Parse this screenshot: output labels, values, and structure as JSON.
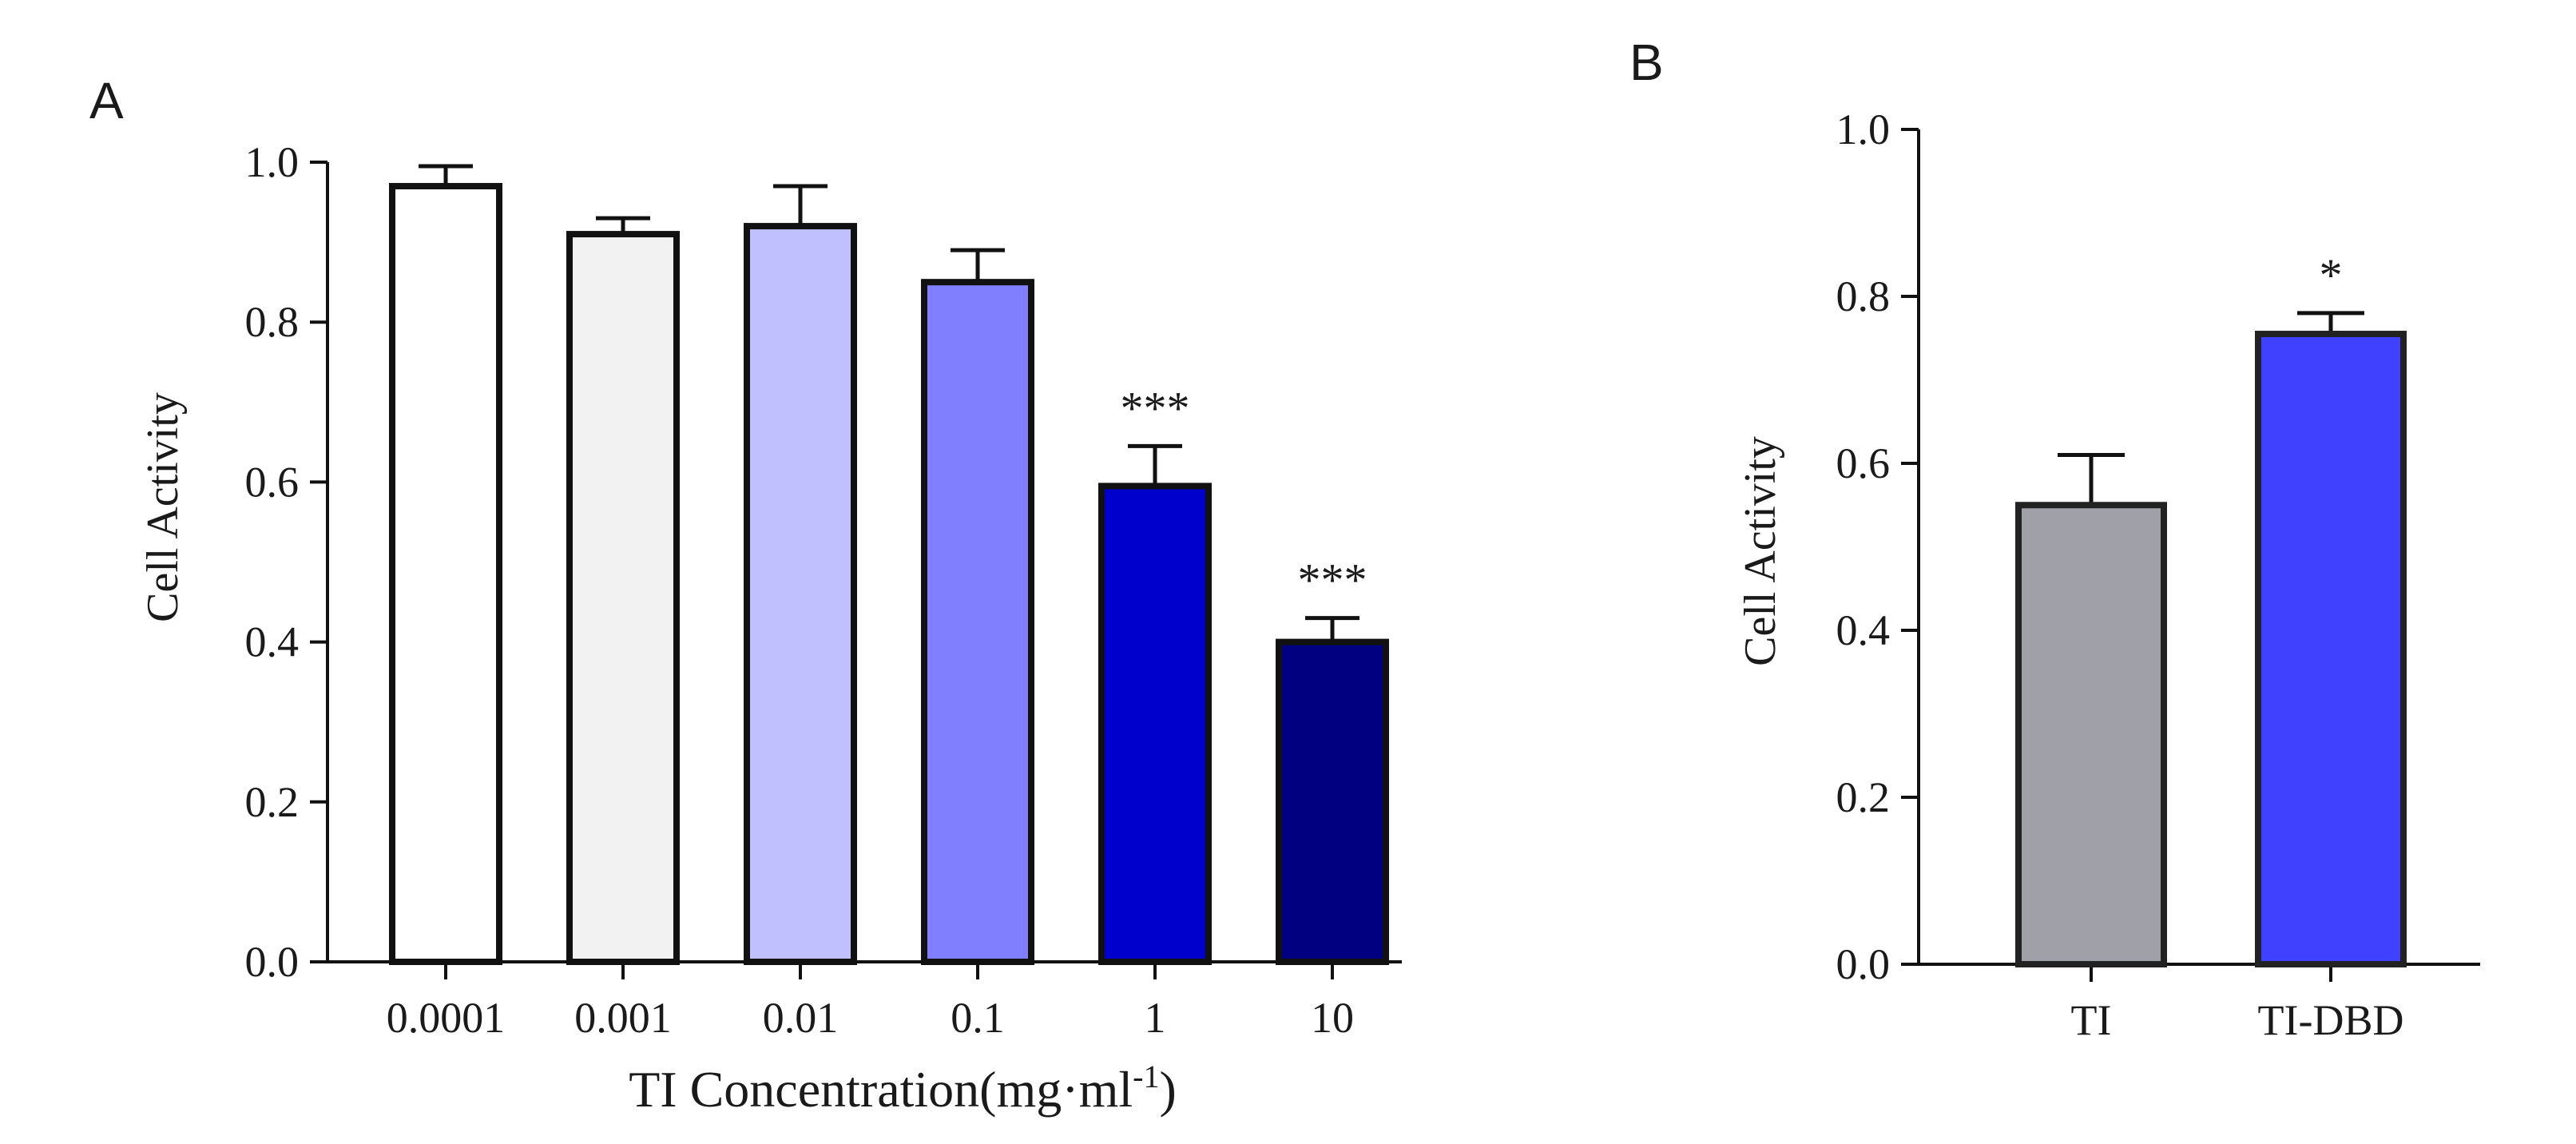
{
  "chart_data": [
    {
      "panel": "A",
      "type": "bar",
      "title": "",
      "xlabel": "TI Concentration(mg·ml",
      "xlabel_superscript": "-1",
      "xlabel_suffix": ")",
      "ylabel": "Cell Activity",
      "ylim": [
        0,
        1.0
      ],
      "yticks": [
        0.0,
        0.2,
        0.4,
        0.6,
        0.8,
        1.0
      ],
      "ytick_labels": [
        "0.0",
        "0.2",
        "0.4",
        "0.6",
        "0.8",
        "1.0"
      ],
      "grid": false,
      "categories": [
        "0.0001",
        "0.001",
        "0.01",
        "0.1",
        "1",
        "10"
      ],
      "values": [
        0.97,
        0.91,
        0.92,
        0.85,
        0.595,
        0.4
      ],
      "errors": [
        0.025,
        0.02,
        0.05,
        0.04,
        0.05,
        0.03
      ],
      "significance": [
        "",
        "",
        "",
        "",
        "***",
        "***"
      ],
      "colors": [
        "#ffffff",
        "#f2f2f2",
        "#c0c0ff",
        "#8080ff",
        "#0000cc",
        "#000080"
      ]
    },
    {
      "panel": "B",
      "type": "bar",
      "title": "",
      "xlabel": "",
      "ylabel": "Cell Activity",
      "ylim": [
        0,
        1.0
      ],
      "yticks": [
        0.0,
        0.2,
        0.4,
        0.6,
        0.8,
        1.0
      ],
      "ytick_labels": [
        "0.0",
        "0.2",
        "0.4",
        "0.6",
        "0.8",
        "1.0"
      ],
      "grid": false,
      "categories": [
        "TI",
        "TI-DBD"
      ],
      "values": [
        0.55,
        0.755
      ],
      "errors": [
        0.06,
        0.025
      ],
      "significance": [
        "",
        "*"
      ],
      "colors": [
        "#a0a0a8",
        "#4040ff"
      ]
    }
  ]
}
